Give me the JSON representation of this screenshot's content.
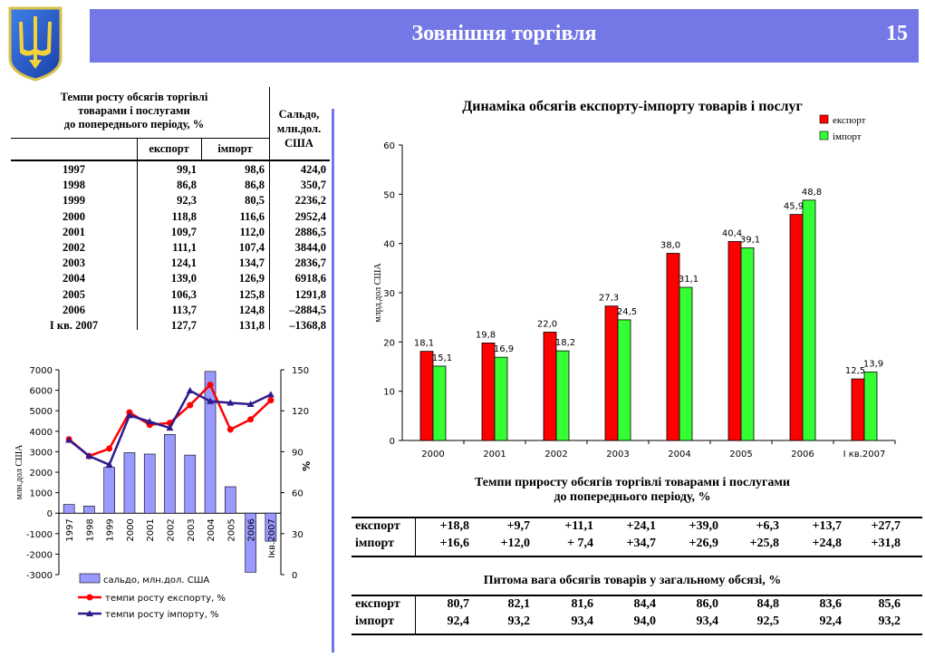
{
  "header": {
    "title": "Зовнішня торгівля",
    "page_number": "15"
  },
  "left_table": {
    "header_main": [
      "Темпи росту обсягів торгівлі",
      "товарами і послугами",
      "до попереднього періоду, %"
    ],
    "header_saldo": [
      "Сальдо,",
      "млн.дол.",
      "США"
    ],
    "col_export": "експорт",
    "col_import": "імпорт",
    "rows": [
      {
        "year": "1997",
        "export": "99,1",
        "import": "98,6",
        "saldo": "424,0"
      },
      {
        "year": "1998",
        "export": "86,8",
        "import": "86,8",
        "saldo": "350,7"
      },
      {
        "year": "1999",
        "export": "92,3",
        "import": "80,5",
        "saldo": "2236,2"
      },
      {
        "year": "2000",
        "export": "118,8",
        "import": "116,6",
        "saldo": "2952,4"
      },
      {
        "year": "2001",
        "export": "109,7",
        "import": "112,0",
        "saldo": "2886,5"
      },
      {
        "year": "2002",
        "export": "111,1",
        "import": "107,4",
        "saldo": "3844,0"
      },
      {
        "year": "2003",
        "export": "124,1",
        "import": "134,7",
        "saldo": "2836,7"
      },
      {
        "year": "2004",
        "export": "139,0",
        "import": "126,9",
        "saldo": "6918,6"
      },
      {
        "year": "2005",
        "export": "106,3",
        "import": "125,8",
        "saldo": "1291,8"
      },
      {
        "year": "2006",
        "export": "113,7",
        "import": "124,8",
        "saldo": "–2884,5"
      },
      {
        "year": "I кв. 2007",
        "export": "127,7",
        "import": "131,8",
        "saldo": "–1368,8"
      }
    ]
  },
  "chart_data": [
    {
      "type": "bar",
      "title": "Динаміка обсягів експорту-імпорту товарів і послуг",
      "xlabel": "",
      "ylabel": "млрд.дол США",
      "ylim": [
        0,
        60
      ],
      "yticks": [
        "0",
        "10",
        "20",
        "30",
        "40",
        "50",
        "60"
      ],
      "categories": [
        "2000",
        "2001",
        "2002",
        "2003",
        "2004",
        "2005",
        "2006",
        "I кв.2007"
      ],
      "series": [
        {
          "name": "експорт",
          "color": "#ff0000",
          "values": [
            18.1,
            19.8,
            22.0,
            27.3,
            38.0,
            40.4,
            45.9,
            12.5
          ],
          "labels": [
            "18,1",
            "19,8",
            "22,0",
            "27,3",
            "38,0",
            "40,4",
            "45,9",
            "12,5"
          ]
        },
        {
          "name": "імпорт",
          "color": "#33ff33",
          "values": [
            15.1,
            16.9,
            18.2,
            24.5,
            31.1,
            39.1,
            48.8,
            13.9
          ],
          "labels": [
            "15,1",
            "16,9",
            "18,2",
            "24,5",
            "31,1",
            "39,1",
            "48,8",
            "13,9"
          ]
        }
      ],
      "legend": "top-right"
    },
    {
      "type": "bar+line",
      "title": "",
      "ylabel": "млн.дол США",
      "y2label": "%",
      "ylim": [
        -3000,
        7000
      ],
      "y2lim": [
        0,
        150
      ],
      "yticks": [
        "7000",
        "6000",
        "5000",
        "4000",
        "3000",
        "2000",
        "1000",
        "0",
        "-1000",
        "-2000",
        "-3000"
      ],
      "y2ticks": [
        "150",
        "120",
        "90",
        "60",
        "30",
        "0"
      ],
      "categories": [
        "1997",
        "1998",
        "1999",
        "2000",
        "2001",
        "2002",
        "2003",
        "2004",
        "2005",
        "2006",
        "Iкв.2007"
      ],
      "series": [
        {
          "name": "сальдо, млн.дол. США",
          "kind": "bar",
          "color": "#9999ff",
          "values": [
            424.0,
            350.7,
            2236.2,
            2952.4,
            2886.5,
            3844.0,
            2836.7,
            6918.6,
            1291.8,
            -2884.5,
            -1368.8
          ]
        },
        {
          "name": "темпи росту експорту, %",
          "kind": "line",
          "axis": "right",
          "color": "#ff0000",
          "values": [
            99.1,
            86.8,
            92.3,
            118.8,
            109.7,
            111.1,
            124.1,
            139.0,
            106.3,
            113.7,
            127.7
          ]
        },
        {
          "name": "темпи росту імпорту, %",
          "kind": "line",
          "axis": "right",
          "color": "#2e1a8c",
          "values": [
            98.6,
            86.8,
            80.5,
            116.6,
            112.0,
            107.4,
            134.7,
            126.9,
            125.8,
            124.8,
            131.8
          ]
        }
      ],
      "legend": "bottom"
    }
  ],
  "growth_table": {
    "title": [
      "Темпи  приросту обсягів торгівлі товарами і послугами",
      "до попереднього періоду, %"
    ],
    "rows": [
      {
        "label": "експорт",
        "values": [
          "+18,8",
          "+9,7",
          "+11,1",
          "+24,1",
          "+39,0",
          "+6,3",
          "+13,7",
          "+27,7"
        ]
      },
      {
        "label": "імпорт",
        "values": [
          "+16,6",
          "+12,0",
          "+ 7,4",
          "+34,7",
          "+26,9",
          "+25,8",
          "+24,8",
          "+31,8"
        ]
      }
    ]
  },
  "share_table": {
    "title": "Питома вага обсягів товарів у загальному обсязі, %",
    "rows": [
      {
        "label": "експорт",
        "values": [
          "80,7",
          "82,1",
          "81,6",
          "84,4",
          "86,0",
          "84,8",
          "83,6",
          "85,6"
        ]
      },
      {
        "label": "імпорт",
        "values": [
          "92,4",
          "93,2",
          "93,4",
          "94,0",
          "93,4",
          "92,5",
          "92,4",
          "93,2"
        ]
      }
    ]
  }
}
